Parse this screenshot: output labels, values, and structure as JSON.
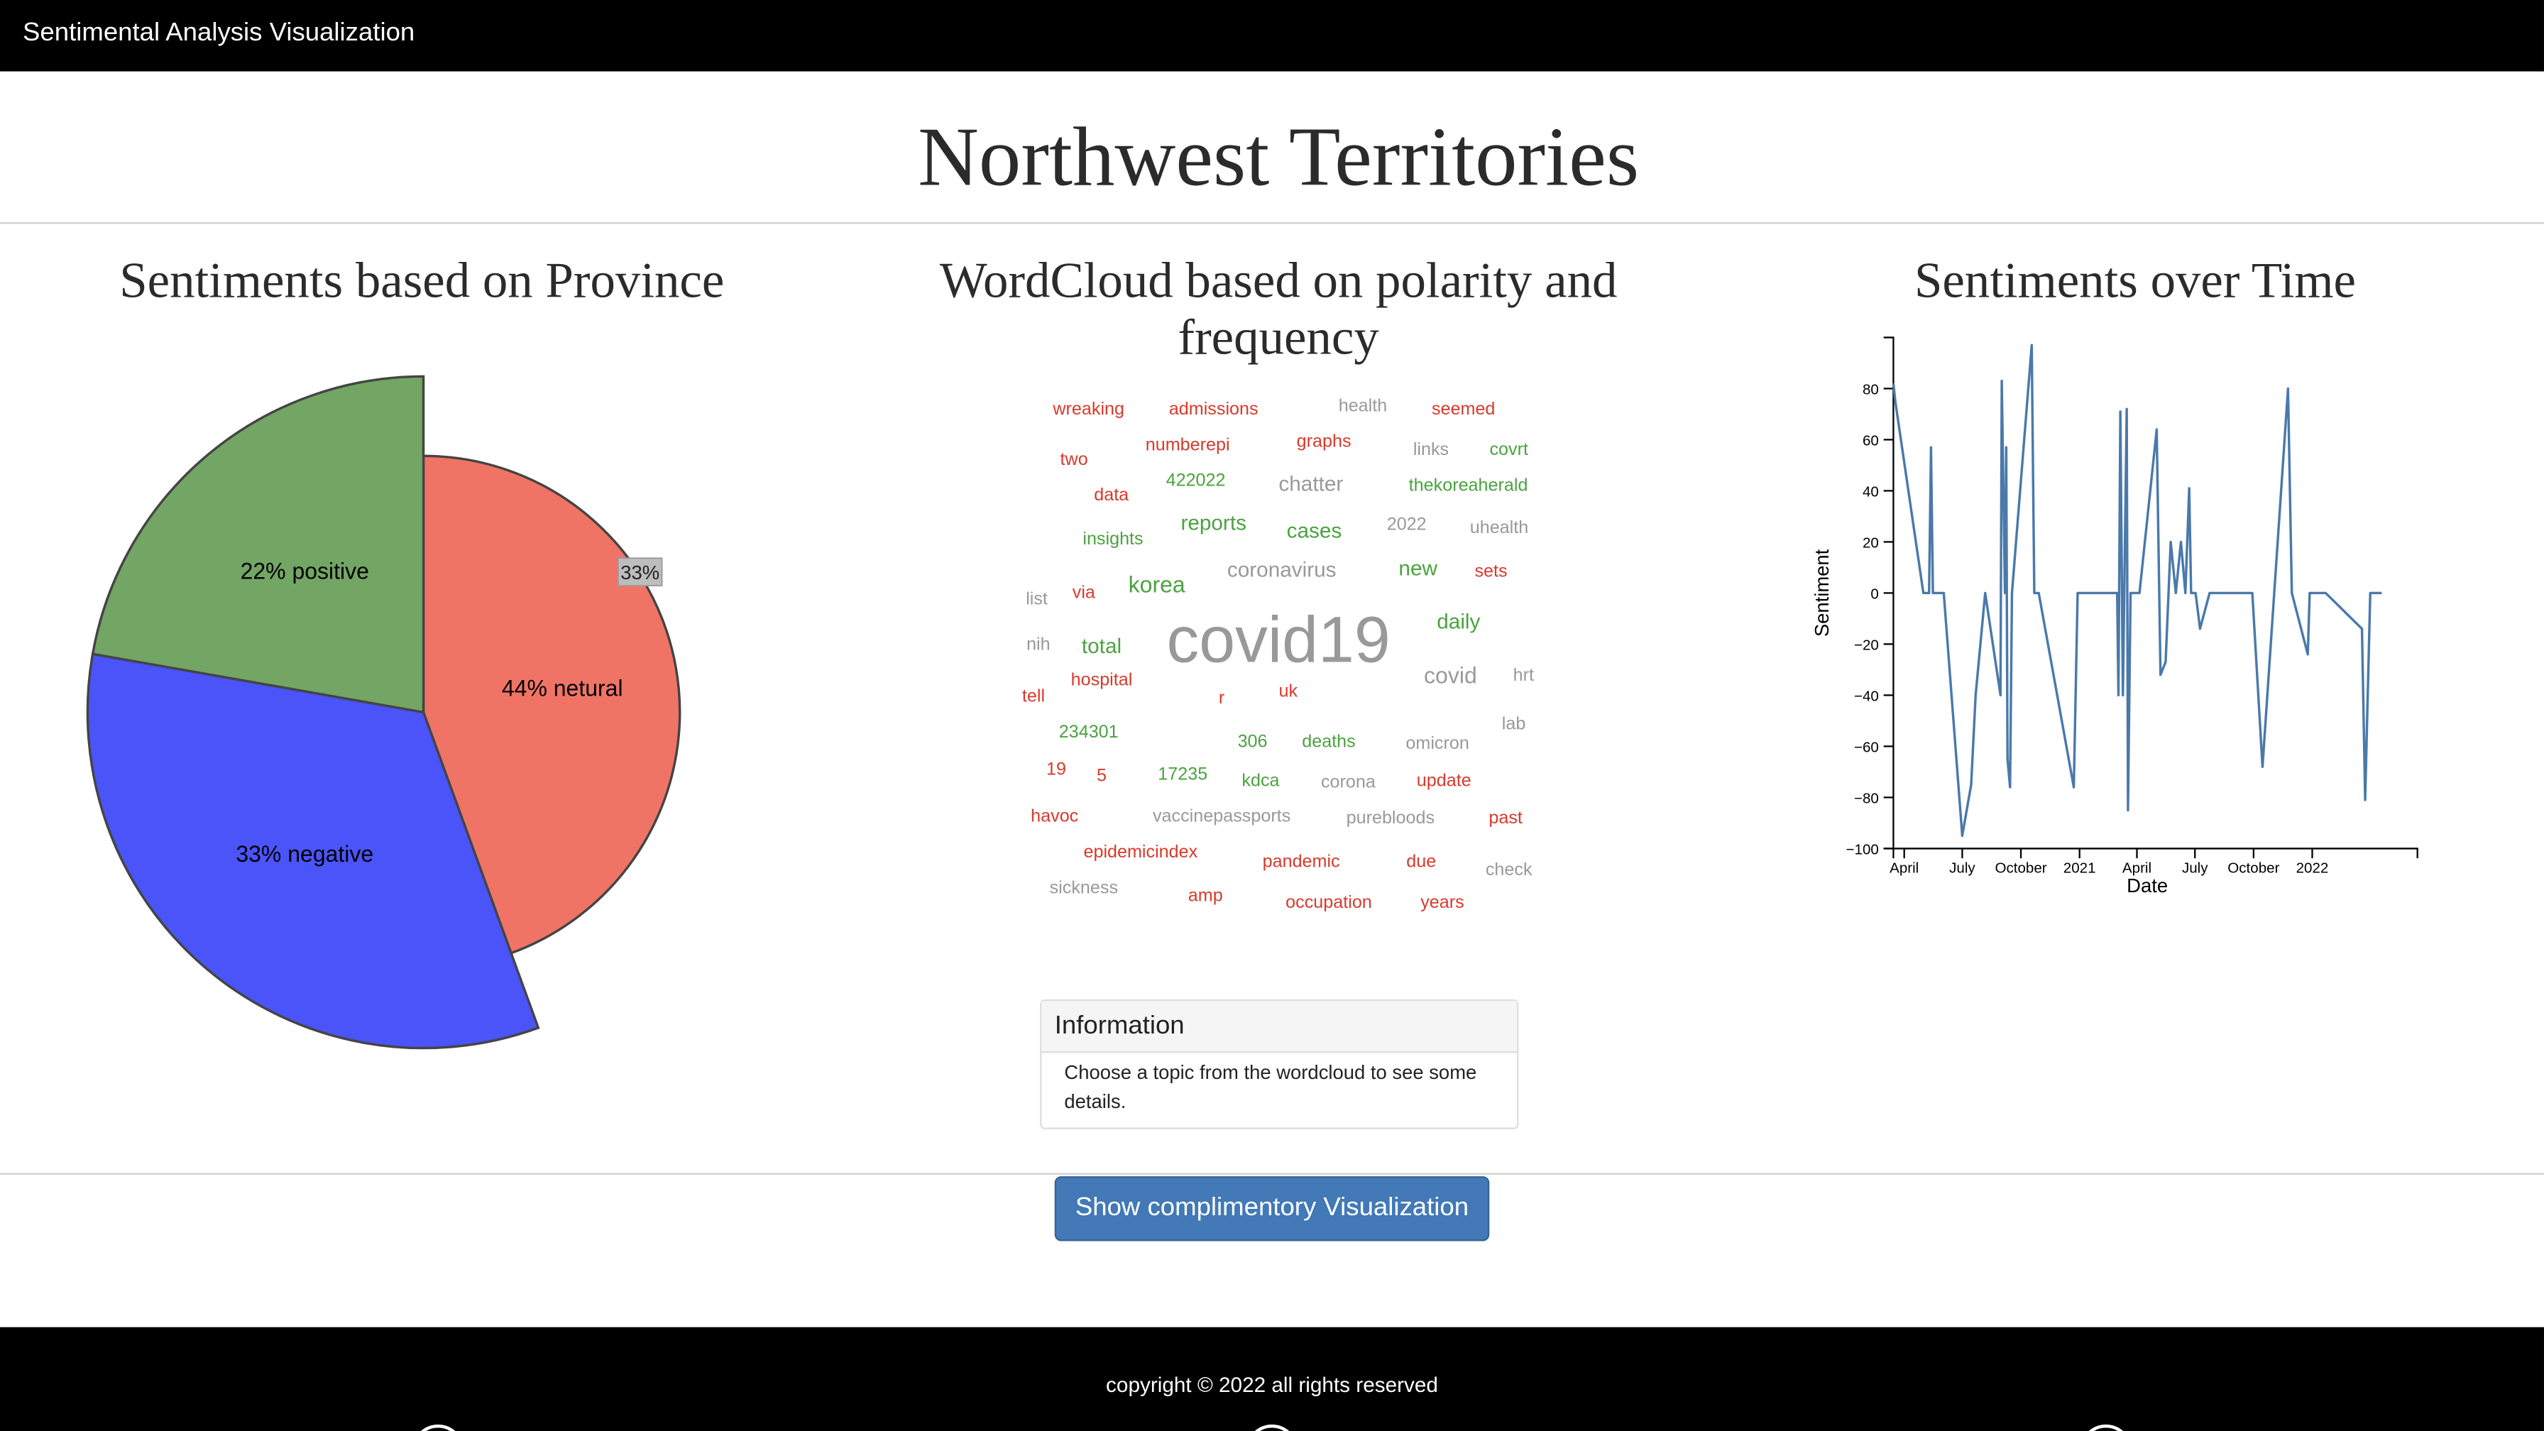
{
  "navbar": {
    "brand": "Sentimental Analysis Visualization"
  },
  "page_title": "Northwest Territories",
  "pie_section": {
    "title": "Sentiments based on Province",
    "chart_data": {
      "type": "pie",
      "slices": [
        {
          "label": "44% netural",
          "value": 44,
          "color": "#f07466"
        },
        {
          "label": "33% negative",
          "value": 33,
          "color": "#4a54f9"
        },
        {
          "label": "22% positive",
          "value": 22,
          "color": "#73a564"
        }
      ],
      "tooltip": "33%"
    }
  },
  "wordcloud_section": {
    "title_line1": "WordCloud based on polarity and",
    "title_line2": "frequency",
    "colors": {
      "positive": "#4aa33f",
      "negative": "#d83a2c",
      "neutral": "#999999"
    },
    "words": [
      {
        "text": "wreaking",
        "sentiment": "negative",
        "size": 11
      },
      {
        "text": "admissions",
        "sentiment": "negative",
        "size": 11
      },
      {
        "text": "health",
        "sentiment": "neutral",
        "size": 11
      },
      {
        "text": "seemed",
        "sentiment": "negative",
        "size": 11
      },
      {
        "text": "two",
        "sentiment": "negative",
        "size": 11
      },
      {
        "text": "numberepi",
        "sentiment": "negative",
        "size": 11
      },
      {
        "text": "graphs",
        "sentiment": "negative",
        "size": 11
      },
      {
        "text": "links",
        "sentiment": "neutral",
        "size": 11
      },
      {
        "text": "covrt",
        "sentiment": "positive",
        "size": 11
      },
      {
        "text": "data",
        "sentiment": "negative",
        "size": 11
      },
      {
        "text": "422022",
        "sentiment": "positive",
        "size": 11
      },
      {
        "text": "chatter",
        "sentiment": "neutral",
        "size": 13
      },
      {
        "text": "thekoreaherald",
        "sentiment": "positive",
        "size": 11
      },
      {
        "text": "insights",
        "sentiment": "positive",
        "size": 11
      },
      {
        "text": "reports",
        "sentiment": "positive",
        "size": 13
      },
      {
        "text": "cases",
        "sentiment": "positive",
        "size": 13
      },
      {
        "text": "2022",
        "sentiment": "neutral",
        "size": 11
      },
      {
        "text": "uhealth",
        "sentiment": "neutral",
        "size": 11
      },
      {
        "text": "coronavirus",
        "sentiment": "neutral",
        "size": 13
      },
      {
        "text": "new",
        "sentiment": "positive",
        "size": 13
      },
      {
        "text": "sets",
        "sentiment": "negative",
        "size": 11
      },
      {
        "text": "list",
        "sentiment": "neutral",
        "size": 11
      },
      {
        "text": "via",
        "sentiment": "negative",
        "size": 11
      },
      {
        "text": "korea",
        "sentiment": "positive",
        "size": 14
      },
      {
        "text": "covid19",
        "sentiment": "neutral",
        "size": 40
      },
      {
        "text": "daily",
        "sentiment": "positive",
        "size": 13
      },
      {
        "text": "nih",
        "sentiment": "neutral",
        "size": 11
      },
      {
        "text": "total",
        "sentiment": "positive",
        "size": 13
      },
      {
        "text": "covid",
        "sentiment": "neutral",
        "size": 14
      },
      {
        "text": "hrt",
        "sentiment": "neutral",
        "size": 11
      },
      {
        "text": "hospital",
        "sentiment": "negative",
        "size": 11
      },
      {
        "text": "tell",
        "sentiment": "negative",
        "size": 11
      },
      {
        "text": "r",
        "sentiment": "negative",
        "size": 11
      },
      {
        "text": "uk",
        "sentiment": "negative",
        "size": 11
      },
      {
        "text": "lab",
        "sentiment": "neutral",
        "size": 11
      },
      {
        "text": "234301",
        "sentiment": "positive",
        "size": 11
      },
      {
        "text": "306",
        "sentiment": "positive",
        "size": 11
      },
      {
        "text": "deaths",
        "sentiment": "positive",
        "size": 11
      },
      {
        "text": "omicron",
        "sentiment": "neutral",
        "size": 11
      },
      {
        "text": "19",
        "sentiment": "negative",
        "size": 11
      },
      {
        "text": "5",
        "sentiment": "negative",
        "size": 11
      },
      {
        "text": "17235",
        "sentiment": "positive",
        "size": 11
      },
      {
        "text": "kdca",
        "sentiment": "positive",
        "size": 11
      },
      {
        "text": "corona",
        "sentiment": "neutral",
        "size": 11
      },
      {
        "text": "update",
        "sentiment": "negative",
        "size": 11
      },
      {
        "text": "havoc",
        "sentiment": "negative",
        "size": 11
      },
      {
        "text": "vaccinepassports",
        "sentiment": "neutral",
        "size": 11
      },
      {
        "text": "purebloods",
        "sentiment": "neutral",
        "size": 11
      },
      {
        "text": "past",
        "sentiment": "negative",
        "size": 11
      },
      {
        "text": "epidemicindex",
        "sentiment": "negative",
        "size": 11
      },
      {
        "text": "pandemic",
        "sentiment": "negative",
        "size": 11
      },
      {
        "text": "due",
        "sentiment": "negative",
        "size": 11
      },
      {
        "text": "check",
        "sentiment": "neutral",
        "size": 11
      },
      {
        "text": "sickness",
        "sentiment": "neutral",
        "size": 11
      },
      {
        "text": "amp",
        "sentiment": "negative",
        "size": 11
      },
      {
        "text": "occupation",
        "sentiment": "negative",
        "size": 11
      },
      {
        "text": "years",
        "sentiment": "negative",
        "size": 11
      }
    ]
  },
  "info_panel": {
    "heading": "Information",
    "body": "Choose a topic from the wordcloud to see some details."
  },
  "line_section": {
    "title": "Sentiments over Time",
    "chart_data": {
      "type": "line",
      "title": "Sentiments over Time",
      "xlabel": "Date",
      "ylabel": "Sentiment",
      "ylim": [
        -100,
        100
      ],
      "xlim": [
        "2020-03-15",
        "2022-06-15"
      ],
      "y_ticks": [
        -100,
        -80,
        -60,
        -40,
        -20,
        0,
        20,
        40,
        60,
        80
      ],
      "x_ticks": [
        {
          "date": "2020-04-01",
          "label": "April"
        },
        {
          "date": "2020-07-01",
          "label": "July"
        },
        {
          "date": "2020-10-01",
          "label": "October"
        },
        {
          "date": "2021-01-01",
          "label": "2021"
        },
        {
          "date": "2021-04-01",
          "label": "April"
        },
        {
          "date": "2021-07-01",
          "label": "July"
        },
        {
          "date": "2021-10-01",
          "label": "October"
        },
        {
          "date": "2022-01-01",
          "label": "2022"
        }
      ],
      "line_color": "#4a79aa",
      "series": [
        {
          "points": [
            [
              "2020-03-15",
              82
            ],
            [
              "2020-03-18",
              75
            ],
            [
              "2020-05-01",
              0
            ],
            [
              "2020-05-10",
              0
            ],
            [
              "2020-05-13",
              57
            ],
            [
              "2020-05-16",
              0
            ],
            [
              "2020-06-02",
              0
            ],
            [
              "2020-07-01",
              -95
            ],
            [
              "2020-07-15",
              -75
            ],
            [
              "2020-07-22",
              -40
            ],
            [
              "2020-08-06",
              0
            ],
            [
              "2020-08-30",
              -40
            ],
            [
              "2020-09-01",
              83
            ],
            [
              "2020-09-06",
              0
            ],
            [
              "2020-09-08",
              57
            ],
            [
              "2020-09-10",
              -65
            ],
            [
              "2020-09-14",
              -76
            ],
            [
              "2020-09-17",
              0
            ],
            [
              "2020-10-18",
              97
            ],
            [
              "2020-10-22",
              0
            ],
            [
              "2020-10-29",
              0
            ],
            [
              "2020-12-23",
              -76
            ],
            [
              "2020-12-29",
              0
            ],
            [
              "2021-03-01",
              0
            ],
            [
              "2021-03-03",
              -40
            ],
            [
              "2021-03-06",
              71
            ],
            [
              "2021-03-10",
              -40
            ],
            [
              "2021-03-16",
              72
            ],
            [
              "2021-03-18",
              -85
            ],
            [
              "2021-03-22",
              0
            ],
            [
              "2021-04-05",
              0
            ],
            [
              "2021-05-02",
              64
            ],
            [
              "2021-05-08",
              -32
            ],
            [
              "2021-05-16",
              -27
            ],
            [
              "2021-05-24",
              20
            ],
            [
              "2021-06-01",
              0
            ],
            [
              "2021-06-09",
              20
            ],
            [
              "2021-06-16",
              0
            ],
            [
              "2021-06-22",
              41
            ],
            [
              "2021-06-25",
              0
            ],
            [
              "2021-07-02",
              0
            ],
            [
              "2021-07-09",
              -14
            ],
            [
              "2021-07-24",
              0
            ],
            [
              "2021-09-29",
              0
            ],
            [
              "2021-10-15",
              -68
            ],
            [
              "2021-11-24",
              80
            ],
            [
              "2021-11-30",
              0
            ],
            [
              "2021-12-25",
              -24
            ],
            [
              "2021-12-28",
              0
            ],
            [
              "2022-01-22",
              0
            ],
            [
              "2022-03-20",
              -14
            ],
            [
              "2022-03-25",
              -81
            ],
            [
              "2022-04-02",
              0
            ],
            [
              "2022-04-20",
              0
            ]
          ]
        }
      ]
    }
  },
  "actions": {
    "show_button": "Show complimentory Visualization"
  },
  "footer": {
    "copyright": "copyright © 2022 all rights reserved"
  }
}
